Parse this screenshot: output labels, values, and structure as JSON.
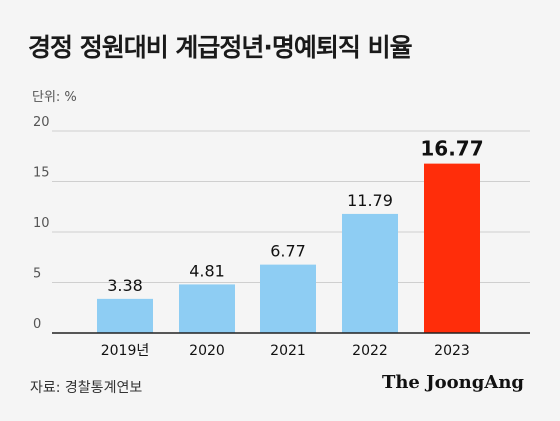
{
  "title": "경정 정원대비 계급정년·명예퇴직 비율",
  "unit_label": "단위: %",
  "source": "자료: 경찰통계연보",
  "brand": "The JoongAng",
  "colors": {
    "normal": "#8ecdf3",
    "highlight": "#ff2d0a",
    "grid": "#cfcfcf",
    "axis": "#222222",
    "background": "#f5f5f5"
  },
  "chart_data": {
    "type": "bar",
    "title": "경정 정원대비 계급정년·명예퇴직 비율",
    "xlabel": "",
    "ylabel": "",
    "categories": [
      "2019년",
      "2020",
      "2021",
      "2022",
      "2023"
    ],
    "values": [
      3.38,
      4.81,
      6.77,
      11.79,
      16.77
    ],
    "value_labels": [
      "3.38",
      "4.81",
      "6.77",
      "11.79",
      "16.77"
    ],
    "highlight_index": 4,
    "ylim": [
      0,
      20
    ],
    "yticks": [
      "0",
      "5",
      "10",
      "15",
      "20"
    ],
    "grid": true,
    "legend": "none"
  }
}
